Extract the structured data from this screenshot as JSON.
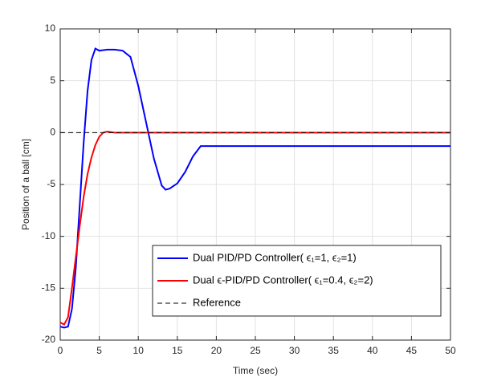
{
  "chart_data": {
    "type": "line",
    "xlabel": "Time (sec)",
    "ylabel": "Position of a ball [cm]",
    "xlim": [
      0,
      50
    ],
    "ylim": [
      -20,
      10
    ],
    "xticks": [
      0,
      5,
      10,
      15,
      20,
      25,
      30,
      35,
      40,
      45,
      50
    ],
    "yticks": [
      -20,
      -15,
      -10,
      -5,
      0,
      5,
      10
    ],
    "grid": true,
    "legend": "lower right",
    "series": [
      {
        "name": "Dual PID/PD Controller( ϵ₁=1, ϵ₂=1)",
        "color": "#0000ff",
        "x": [
          0,
          0.5,
          1,
          1.5,
          2,
          2.5,
          3,
          3.5,
          4,
          4.5,
          5,
          6,
          7,
          8,
          9,
          10,
          11,
          12,
          13,
          13.5,
          14,
          15,
          16,
          17,
          18,
          20,
          50
        ],
        "values": [
          -18.7,
          -18.8,
          -18.7,
          -17,
          -13,
          -7,
          -1,
          4,
          7,
          8.1,
          7.9,
          8,
          8,
          7.9,
          7.3,
          4.5,
          1,
          -2.5,
          -5.1,
          -5.5,
          -5.4,
          -4.9,
          -3.8,
          -2.3,
          -1.3,
          -1.3,
          -1.3
        ]
      },
      {
        "name": "Dual ϵ-PID/PD Controller( ϵ₁=0.4, ϵ₂=2)",
        "color": "#ff0000",
        "x": [
          0,
          0.5,
          1,
          1.5,
          2,
          2.5,
          3,
          3.5,
          4,
          4.5,
          5,
          5.5,
          6,
          7,
          10,
          50
        ],
        "values": [
          -18.3,
          -18.5,
          -17.8,
          -15,
          -12,
          -9,
          -6.2,
          -4,
          -2.4,
          -1.2,
          -0.4,
          0,
          0.1,
          0,
          0,
          0
        ]
      },
      {
        "name": "Reference",
        "color": "#000000",
        "dashed": true,
        "x": [
          0,
          50
        ],
        "values": [
          0,
          0
        ]
      }
    ]
  }
}
